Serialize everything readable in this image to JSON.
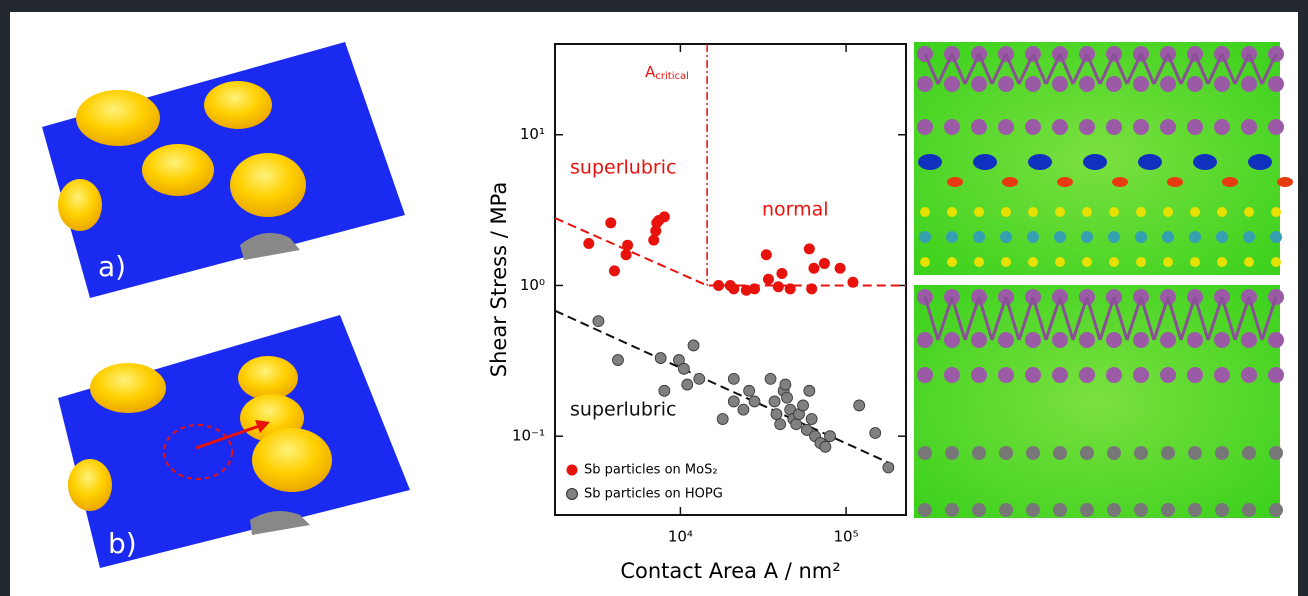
{
  "chart_data": {
    "type": "scatter",
    "x_label": "Contact Area A / nm²",
    "y_label": "Shear Stress / MPa",
    "xlog": true,
    "ylog": true,
    "xlim": [
      1750,
      230000
    ],
    "ylim": [
      0.03,
      40
    ],
    "xticks": [
      {
        "value": 10000,
        "label": "10⁴"
      },
      {
        "value": 100000,
        "label": "10⁵"
      }
    ],
    "yticks": [
      {
        "value": 0.1,
        "label": "10⁻¹"
      },
      {
        "value": 1,
        "label": "10⁰"
      },
      {
        "value": 10,
        "label": "10¹"
      }
    ],
    "series": [
      {
        "name": "Sb particles on MoS₂",
        "color": "#e8120c",
        "x": [
          2800,
          3800,
          4000,
          4700,
          4800,
          6900,
          7100,
          7200,
          7400,
          8000,
          17000,
          20000,
          21000,
          25000,
          28000,
          33000,
          34000,
          39000,
          41000,
          46000,
          60000,
          62000,
          64000,
          74000,
          92000,
          110000
        ],
        "values": [
          1.9,
          2.6,
          1.25,
          1.6,
          1.85,
          2.0,
          2.3,
          2.6,
          2.7,
          2.85,
          1.0,
          1.0,
          0.95,
          0.93,
          0.95,
          1.6,
          1.1,
          0.98,
          1.2,
          0.95,
          1.75,
          0.95,
          1.3,
          1.4,
          1.3,
          1.05
        ]
      },
      {
        "name": "Sb particles on HOPG",
        "color": "#808080",
        "x": [
          3200,
          4200,
          7600,
          8000,
          9800,
          10500,
          11000,
          12000,
          13000,
          18000,
          21000,
          21000,
          24000,
          26000,
          28000,
          35000,
          37000,
          38000,
          40000,
          42000,
          43000,
          44000,
          46000,
          48000,
          50000,
          52000,
          55000,
          58000,
          60000,
          62000,
          65000,
          70000,
          75000,
          80000,
          120000,
          150000,
          180000
        ],
        "values": [
          0.58,
          0.32,
          0.33,
          0.2,
          0.32,
          0.28,
          0.22,
          0.4,
          0.24,
          0.13,
          0.24,
          0.17,
          0.15,
          0.2,
          0.17,
          0.24,
          0.17,
          0.14,
          0.12,
          0.2,
          0.22,
          0.18,
          0.15,
          0.13,
          0.12,
          0.14,
          0.16,
          0.11,
          0.2,
          0.13,
          0.1,
          0.09,
          0.085,
          0.1,
          0.16,
          0.105,
          0.062
        ]
      }
    ],
    "fits": [
      {
        "color": "#e8120c",
        "x": [
          1750,
          14500,
          230000
        ],
        "values": [
          2.8,
          1.0,
          1.0
        ]
      },
      {
        "color": "#111111",
        "x": [
          1750,
          190000
        ],
        "values": [
          0.68,
          0.065
        ]
      }
    ],
    "critical_area": 14500,
    "annotations": {
      "critical": "A",
      "critical_sub": "critical",
      "superlubric_red": "superlubric",
      "normal": "normal",
      "superlubric_black": "superlubric"
    }
  },
  "panels": {
    "labels": [
      "a)",
      "b)"
    ]
  }
}
